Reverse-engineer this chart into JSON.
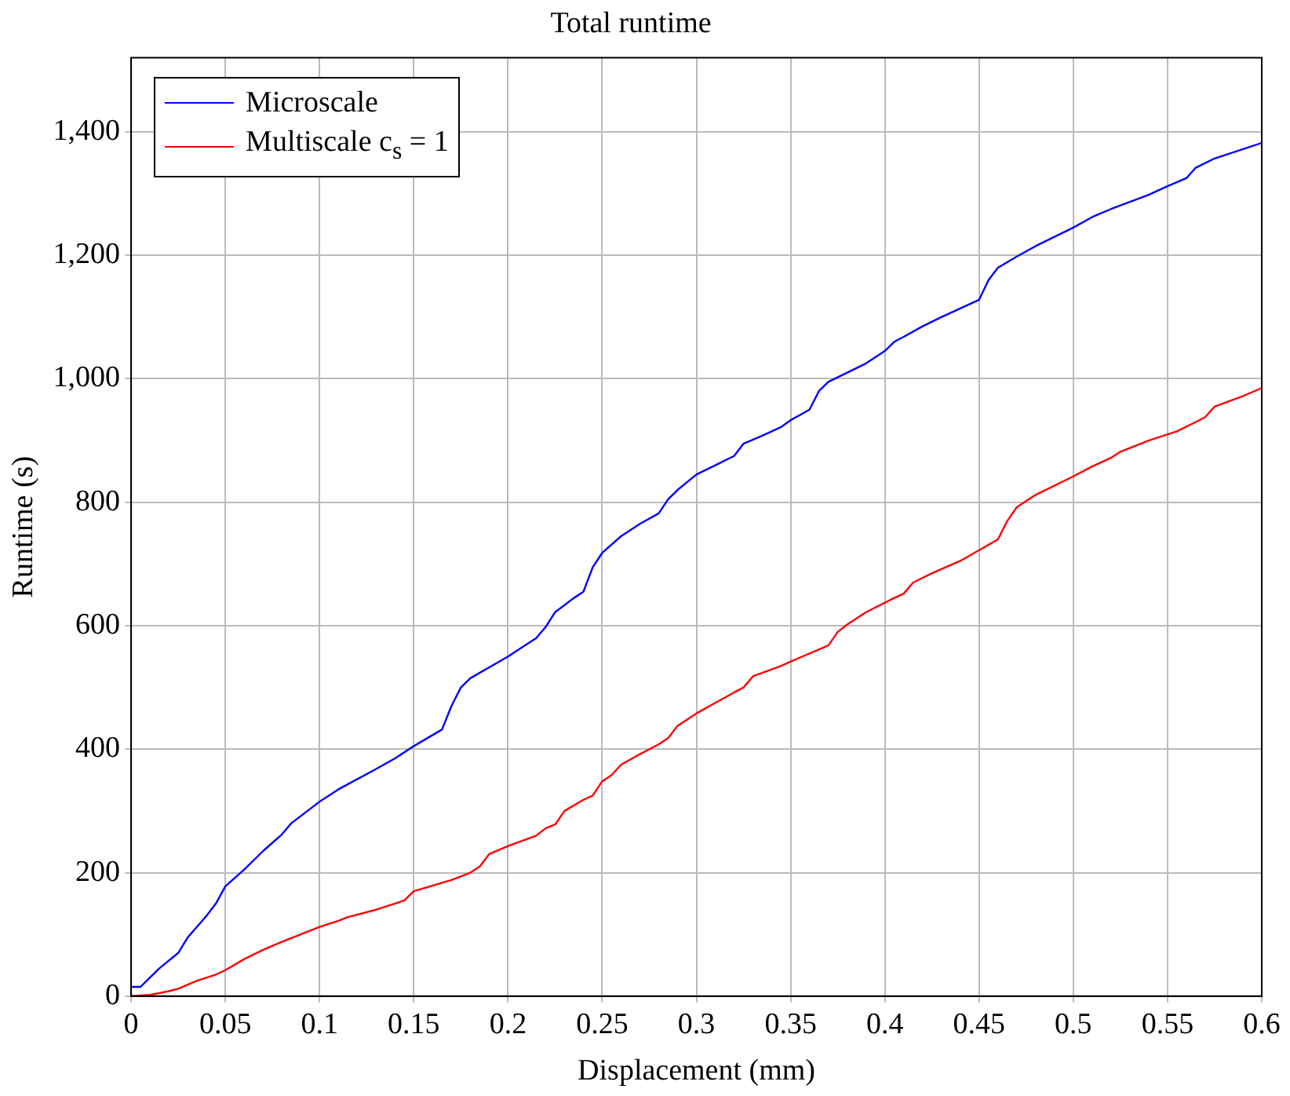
{
  "chart_data": {
    "type": "line",
    "title": "Total runtime",
    "xlabel": "Displacement (mm)",
    "ylabel": "Runtime (s)",
    "xlim": [
      0,
      0.6
    ],
    "ylim": [
      0,
      1520
    ],
    "xticks": [
      0,
      0.05,
      0.1,
      0.15,
      0.2,
      0.25,
      0.3,
      0.35,
      0.4,
      0.45,
      0.5,
      0.55,
      0.6
    ],
    "yticks": [
      0,
      200,
      400,
      600,
      800,
      {
        "value": 1000,
        "label": "1,000"
      },
      {
        "value": 1200,
        "label": "1,200"
      },
      {
        "value": 1400,
        "label": "1,400"
      }
    ],
    "grid": true,
    "legend": "top left",
    "marker": "none",
    "line_style": "solid",
    "series": [
      {
        "name": "Microscale",
        "color": "#0000ff",
        "x": [
          0,
          0.005,
          0.01,
          0.015,
          0.025,
          0.03,
          0.04,
          0.045,
          0.05,
          0.06,
          0.07,
          0.08,
          0.085,
          0.1,
          0.11,
          0.13,
          0.14,
          0.15,
          0.165,
          0.17,
          0.175,
          0.18,
          0.2,
          0.21,
          0.215,
          0.22,
          0.225,
          0.235,
          0.24,
          0.245,
          0.25,
          0.26,
          0.27,
          0.28,
          0.285,
          0.29,
          0.3,
          0.31,
          0.32,
          0.325,
          0.335,
          0.345,
          0.35,
          0.36,
          0.365,
          0.37,
          0.38,
          0.39,
          0.4,
          0.405,
          0.41,
          0.42,
          0.43,
          0.45,
          0.455,
          0.46,
          0.47,
          0.48,
          0.5,
          0.51,
          0.52,
          0.54,
          0.55,
          0.56,
          0.565,
          0.575,
          0.6
        ],
        "values": [
          15,
          15,
          30,
          45,
          70,
          95,
          130,
          150,
          178,
          205,
          235,
          262,
          280,
          315,
          335,
          368,
          385,
          405,
          432,
          470,
          500,
          515,
          550,
          570,
          580,
          598,
          622,
          645,
          655,
          695,
          718,
          745,
          765,
          782,
          805,
          820,
          845,
          860,
          875,
          895,
          908,
          922,
          933,
          950,
          980,
          995,
          1010,
          1025,
          1045,
          1060,
          1068,
          1085,
          1100,
          1128,
          1160,
          1180,
          1198,
          1215,
          1245,
          1262,
          1275,
          1298,
          1312,
          1325,
          1342,
          1357,
          1382
        ]
      },
      {
        "name": "Multiscale c$_{s}$ = 1",
        "color": "#ff0000",
        "x": [
          0,
          0.01,
          0.02,
          0.025,
          0.035,
          0.045,
          0.05,
          0.06,
          0.07,
          0.08,
          0.09,
          0.1,
          0.11,
          0.115,
          0.13,
          0.145,
          0.15,
          0.17,
          0.18,
          0.185,
          0.19,
          0.2,
          0.215,
          0.22,
          0.225,
          0.23,
          0.24,
          0.245,
          0.25,
          0.255,
          0.26,
          0.27,
          0.28,
          0.285,
          0.29,
          0.3,
          0.31,
          0.32,
          0.325,
          0.33,
          0.345,
          0.35,
          0.37,
          0.375,
          0.38,
          0.39,
          0.405,
          0.41,
          0.415,
          0.425,
          0.44,
          0.46,
          0.465,
          0.47,
          0.48,
          0.5,
          0.51,
          0.52,
          0.525,
          0.54,
          0.555,
          0.565,
          0.57,
          0.575,
          0.59,
          0.6
        ],
        "values": [
          0,
          2,
          8,
          12,
          25,
          35,
          42,
          60,
          75,
          88,
          100,
          112,
          122,
          128,
          140,
          155,
          170,
          188,
          200,
          210,
          230,
          243,
          260,
          272,
          278,
          300,
          318,
          325,
          348,
          358,
          375,
          392,
          408,
          418,
          438,
          458,
          475,
          492,
          500,
          518,
          535,
          542,
          568,
          590,
          602,
          622,
          645,
          652,
          670,
          685,
          705,
          740,
          770,
          792,
          812,
          842,
          858,
          872,
          882,
          900,
          915,
          930,
          938,
          955,
          972,
          985
        ]
      }
    ]
  }
}
